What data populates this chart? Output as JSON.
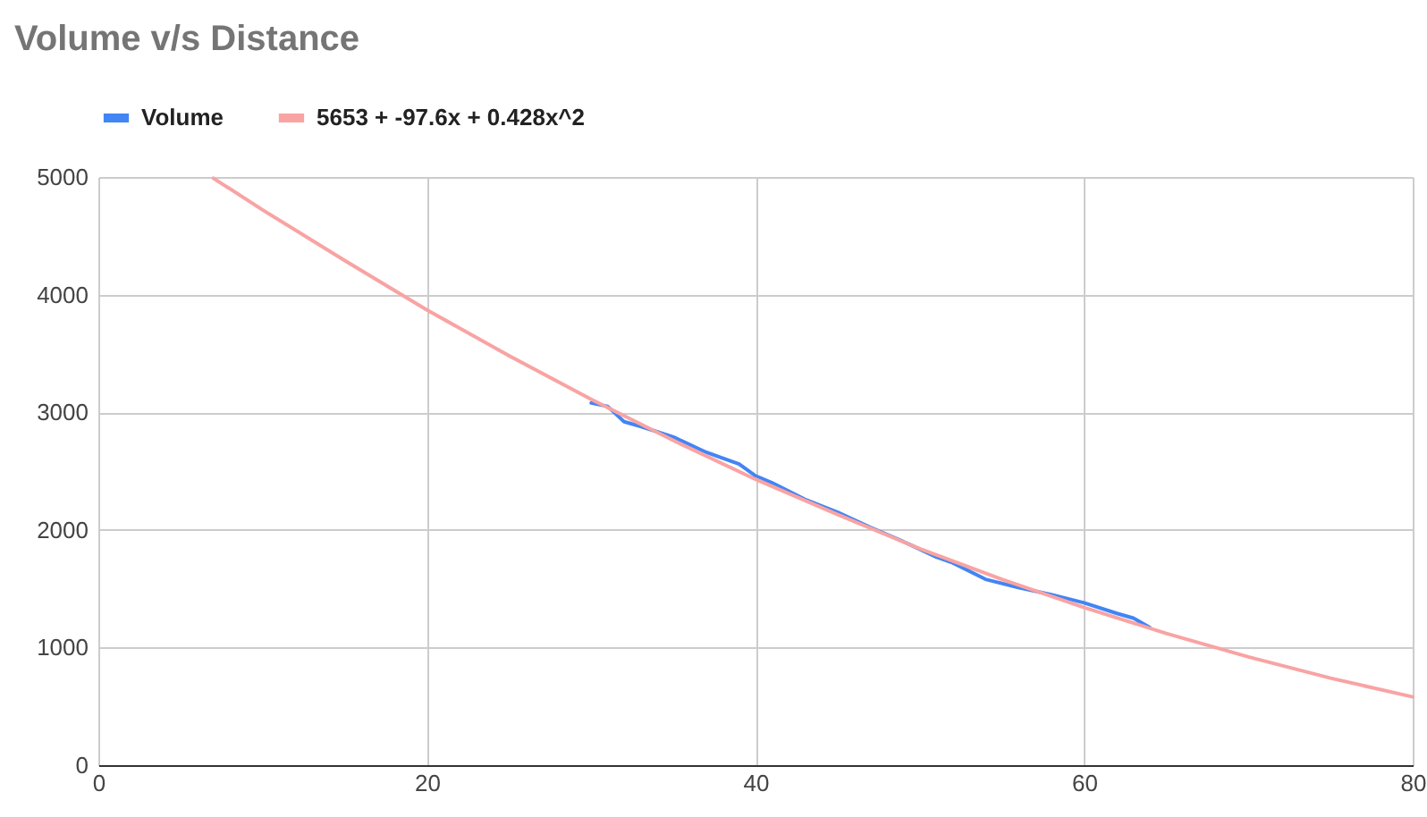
{
  "chart_data": {
    "type": "line",
    "title": "Volume v/s Distance",
    "xlim": [
      0,
      80
    ],
    "xticks": [
      0,
      20,
      40,
      60,
      80
    ],
    "ylim": [
      0,
      5000
    ],
    "yticks": [
      0,
      1000,
      2000,
      3000,
      4000,
      5000
    ],
    "grid": true,
    "legend": "top",
    "line_style": "solid",
    "marker": "none",
    "series": [
      {
        "name": "Volume",
        "color": "#4285f4",
        "x": [
          30,
          31,
          32,
          33,
          35,
          37,
          39,
          40,
          41,
          43,
          45,
          47,
          49,
          51,
          52,
          54,
          56,
          58,
          60,
          62,
          63,
          64
        ],
        "values": [
          3080,
          3050,
          2920,
          2880,
          2790,
          2660,
          2560,
          2460,
          2400,
          2260,
          2150,
          2020,
          1900,
          1770,
          1720,
          1580,
          1510,
          1450,
          1380,
          1290,
          1250,
          1170
        ]
      },
      {
        "name": "5653 + -97.6x + 0.428x^2",
        "type": "line",
        "color": "#f9a3a3",
        "x": [
          7,
          10,
          15,
          20,
          25,
          30,
          35,
          40,
          45,
          50,
          55,
          60,
          65,
          70,
          75,
          80
        ],
        "values": [
          4990,
          4720,
          4290,
          3870,
          3480,
          3110,
          2760,
          2430,
          2130,
          1840,
          1580,
          1340,
          1120,
          920,
          740,
          580
        ]
      }
    ]
  }
}
